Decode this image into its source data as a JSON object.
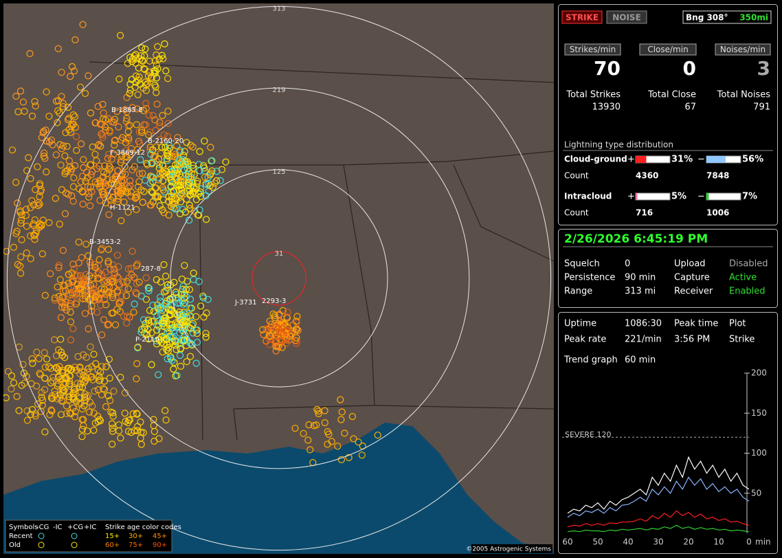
{
  "map": {
    "rings": [
      31,
      125,
      219,
      313
    ],
    "storms": [
      "B-1885-8",
      "B-2160-20",
      "F-3869-12",
      "H-1121",
      "B-3453-2",
      "287-8",
      "J-3731",
      "2293-3",
      "P-2119"
    ],
    "legend": {
      "symbols": "Symbols",
      "cols": [
        "-CG",
        "-IC",
        "+CG",
        "+IC"
      ],
      "age_title": "Strike age color codes",
      "recent": "Recent",
      "old": "Old",
      "recent_ages": [
        "15+",
        "30+",
        "45+"
      ],
      "old_ages": [
        "60+",
        "75+",
        "90+"
      ]
    },
    "copyright": "©2005 Astrogenic Systems"
  },
  "header": {
    "strike": "STRIKE",
    "noise": "NOISE",
    "bearing": "Bng 308°",
    "range": "350mi"
  },
  "rates": [
    {
      "label": "Strikes/min",
      "value": 70,
      "total_label": "Total Strikes",
      "total": 13930
    },
    {
      "label": "Close/min",
      "value": 0,
      "total_label": "Total Close",
      "total": 67
    },
    {
      "label": "Noises/min",
      "value": 3,
      "total_label": "Total Noises",
      "total": 791
    }
  ],
  "distribution": {
    "title": "Lightning type distribution",
    "count_label": "Count",
    "rows": [
      {
        "name": "Cloud-ground",
        "pos": "+",
        "pos_pct": {
          "value": 31,
          "label": "31%"
        },
        "neg": "−",
        "neg_pct": {
          "value": 56,
          "label": "56%"
        },
        "pos_count": 4360,
        "neg_count": 7848
      },
      {
        "name": "Intracloud",
        "pos": "+",
        "pos_pct": {
          "value": 5,
          "label": "5%"
        },
        "neg": "−",
        "neg_pct": {
          "value": 7,
          "label": "7%"
        },
        "pos_count": 716,
        "neg_count": 1006
      }
    ]
  },
  "datetime": "2/26/2026 6:45:19 PM",
  "status": [
    [
      "Squelch",
      "0",
      "Upload",
      "Disabled"
    ],
    [
      "Persistence",
      "90 min",
      "Capture",
      "Active"
    ],
    [
      "Range",
      "313 mi",
      "Receiver",
      "Enabled"
    ]
  ],
  "stats": [
    [
      "Uptime",
      "1086:30",
      "Peak time",
      "Plot"
    ],
    [
      "Peak rate",
      "221/min",
      "3:56 PM",
      "Strike"
    ]
  ],
  "trend_label": "Trend graph",
  "trend_span": "60 min",
  "chart_data": {
    "type": "line",
    "ylim": [
      0,
      200
    ],
    "yticks": [
      50,
      100,
      150,
      200
    ],
    "xlim": [
      60,
      0
    ],
    "xticks": [
      60,
      50,
      40,
      30,
      20,
      10,
      0
    ],
    "xlabel": "min",
    "severe": {
      "value": 120,
      "label": "SEVERE 120"
    },
    "x": [
      60,
      58,
      56,
      54,
      52,
      50,
      48,
      46,
      44,
      42,
      40,
      38,
      36,
      34,
      32,
      30,
      28,
      26,
      24,
      22,
      20,
      18,
      16,
      14,
      12,
      10,
      8,
      6,
      4,
      2,
      0
    ],
    "series": [
      {
        "color": "#ffffff",
        "values": [
          25,
          30,
          28,
          35,
          32,
          38,
          30,
          40,
          35,
          42,
          45,
          50,
          55,
          48,
          70,
          60,
          75,
          65,
          85,
          70,
          95,
          80,
          90,
          75,
          85,
          70,
          80,
          65,
          75,
          60,
          55
        ]
      },
      {
        "color": "#8cb4ff",
        "values": [
          20,
          25,
          22,
          28,
          26,
          30,
          25,
          32,
          28,
          35,
          36,
          40,
          45,
          40,
          55,
          48,
          58,
          50,
          65,
          55,
          70,
          60,
          68,
          55,
          62,
          52,
          58,
          50,
          55,
          45,
          40
        ]
      },
      {
        "color": "#ff2020",
        "values": [
          8,
          10,
          9,
          12,
          10,
          12,
          10,
          13,
          12,
          14,
          14,
          15,
          18,
          15,
          22,
          18,
          25,
          20,
          28,
          22,
          26,
          20,
          24,
          18,
          20,
          16,
          18,
          14,
          15,
          12,
          10
        ]
      },
      {
        "color": "#30d030",
        "values": [
          2,
          3,
          2,
          4,
          3,
          3,
          2,
          4,
          3,
          5,
          4,
          5,
          6,
          4,
          6,
          5,
          8,
          6,
          10,
          6,
          8,
          5,
          7,
          5,
          6,
          4,
          5,
          3,
          4,
          3,
          2
        ]
      }
    ]
  }
}
